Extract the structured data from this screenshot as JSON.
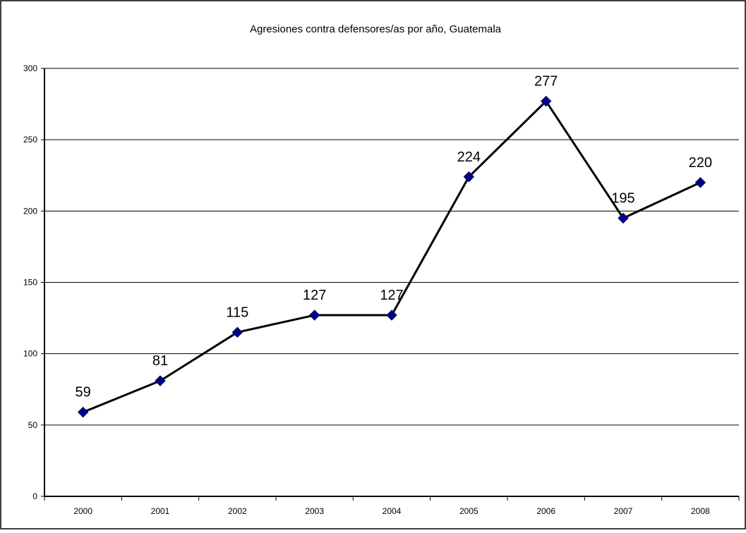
{
  "chart_data": {
    "type": "line",
    "title": "Agresiones contra defensores/as por año, Guatemala",
    "xlabel": "",
    "ylabel": "",
    "categories": [
      "2000",
      "2001",
      "2002",
      "2003",
      "2004",
      "2005",
      "2006",
      "2007",
      "2008"
    ],
    "series": [
      {
        "values": [
          59,
          81,
          115,
          127,
          127,
          224,
          277,
          195,
          220
        ]
      }
    ],
    "ylim": [
      0,
      300
    ],
    "yticks": [
      0,
      50,
      100,
      150,
      200,
      250,
      300
    ],
    "grid": true,
    "legend": "none",
    "line_color": "#000000",
    "marker_color": "#00008b"
  }
}
